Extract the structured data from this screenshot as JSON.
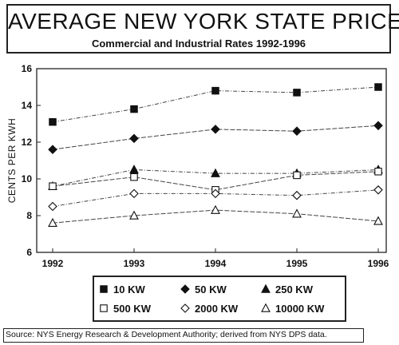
{
  "chart_data": {
    "type": "line",
    "title": "AVERAGE NEW YORK STATE PRICES",
    "subtitle": "Commercial and Industrial Rates  1992-1996",
    "ylabel": "CENTS PER KWH",
    "xlabel": "",
    "x": [
      "1992",
      "1993",
      "1994",
      "1995",
      "1996"
    ],
    "ylim": [
      6,
      16
    ],
    "yticks": [
      "6",
      "8",
      "10",
      "12",
      "14",
      "16"
    ],
    "grid": false,
    "legend_position": "bottom",
    "series": [
      {
        "name": "10 KW",
        "marker": "filled-square",
        "values": [
          13.1,
          13.8,
          14.8,
          14.7,
          15.0
        ]
      },
      {
        "name": "50 KW",
        "marker": "filled-diamond",
        "values": [
          11.6,
          12.2,
          12.7,
          12.6,
          12.9
        ]
      },
      {
        "name": "250 KW",
        "marker": "filled-triangle",
        "values": [
          9.6,
          10.5,
          10.3,
          10.3,
          10.5
        ]
      },
      {
        "name": "500 KW",
        "marker": "open-square",
        "values": [
          9.6,
          10.1,
          9.4,
          10.2,
          10.4
        ]
      },
      {
        "name": "2000 KW",
        "marker": "open-diamond",
        "values": [
          8.5,
          9.2,
          9.2,
          9.1,
          9.4
        ]
      },
      {
        "name": "10000  KW",
        "marker": "open-triangle",
        "values": [
          7.6,
          8.0,
          8.3,
          8.1,
          7.7
        ]
      }
    ]
  },
  "source": "Source: NYS Energy Research & Development Authority; derived from NYS DPS data."
}
